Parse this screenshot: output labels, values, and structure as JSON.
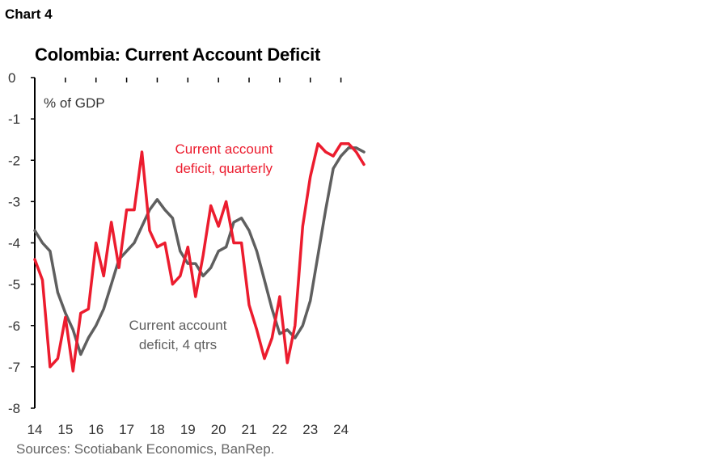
{
  "header": {
    "chart_number": "Chart 4",
    "title": "Colombia: Current Account Deficit"
  },
  "source": "Sources: Scotiabank Economics, BanRep.",
  "chart_data": {
    "type": "line",
    "title": "Colombia: Current Account Deficit",
    "ylabel": "% of GDP",
    "xlabel": "",
    "ylim": [
      -8,
      0
    ],
    "yticks": [
      0,
      -1,
      -2,
      -3,
      -4,
      -5,
      -6,
      -7,
      -8
    ],
    "xlim": [
      2014,
      2024.75
    ],
    "xticks": [
      "14",
      "15",
      "16",
      "17",
      "18",
      "19",
      "20",
      "21",
      "22",
      "23",
      "24"
    ],
    "grid": false,
    "series": [
      {
        "name": "Current account deficit, quarterly",
        "color": "#ec1c2e",
        "x": [
          2014.0,
          2014.25,
          2014.5,
          2014.75,
          2015.0,
          2015.25,
          2015.5,
          2015.75,
          2016.0,
          2016.25,
          2016.5,
          2016.75,
          2017.0,
          2017.25,
          2017.5,
          2017.75,
          2018.0,
          2018.25,
          2018.5,
          2018.75,
          2019.0,
          2019.25,
          2019.5,
          2019.75,
          2020.0,
          2020.25,
          2020.5,
          2020.75,
          2021.0,
          2021.25,
          2021.5,
          2021.75,
          2022.0,
          2022.25,
          2022.5,
          2022.75,
          2023.0,
          2023.25,
          2023.5,
          2023.75,
          2024.0,
          2024.25,
          2024.5,
          2024.75
        ],
        "values": [
          -4.4,
          -4.9,
          -7.0,
          -6.8,
          -5.8,
          -7.1,
          -5.7,
          -5.6,
          -4.0,
          -4.8,
          -3.5,
          -4.6,
          -3.2,
          -3.2,
          -1.8,
          -3.7,
          -4.1,
          -4.0,
          -5.0,
          -4.8,
          -4.1,
          -5.3,
          -4.3,
          -3.1,
          -3.6,
          -3.0,
          -4.0,
          -4.0,
          -5.5,
          -6.1,
          -6.8,
          -6.3,
          -5.3,
          -6.9,
          -6.0,
          -3.6,
          -2.4,
          -1.6,
          -1.8,
          -1.9,
          -1.6,
          -1.6,
          -1.8,
          -2.1
        ]
      },
      {
        "name": "Current account deficit, 4 qtrs",
        "color": "#5f5f5f",
        "x": [
          2014.0,
          2014.25,
          2014.5,
          2014.75,
          2015.0,
          2015.25,
          2015.5,
          2015.75,
          2016.0,
          2016.25,
          2016.5,
          2016.75,
          2017.0,
          2017.25,
          2017.5,
          2017.75,
          2018.0,
          2018.25,
          2018.5,
          2018.75,
          2019.0,
          2019.25,
          2019.5,
          2019.75,
          2020.0,
          2020.25,
          2020.5,
          2020.75,
          2021.0,
          2021.25,
          2021.5,
          2021.75,
          2022.0,
          2022.25,
          2022.5,
          2022.75,
          2023.0,
          2023.25,
          2023.5,
          2023.75,
          2024.0,
          2024.25,
          2024.5,
          2024.75
        ],
        "values": [
          -3.7,
          -4.0,
          -4.2,
          -5.2,
          -5.7,
          -6.1,
          -6.7,
          -6.3,
          -6.0,
          -5.6,
          -5.0,
          -4.4,
          -4.2,
          -4.0,
          -3.6,
          -3.2,
          -2.95,
          -3.2,
          -3.4,
          -4.2,
          -4.5,
          -4.5,
          -4.8,
          -4.6,
          -4.2,
          -4.1,
          -3.5,
          -3.4,
          -3.7,
          -4.2,
          -4.9,
          -5.6,
          -6.2,
          -6.1,
          -6.3,
          -6.0,
          -5.4,
          -4.3,
          -3.2,
          -2.2,
          -1.9,
          -1.7,
          -1.7,
          -1.8
        ]
      }
    ],
    "annotations": [
      {
        "series": 0,
        "lines": [
          "Current account",
          "deficit, quarterly"
        ]
      },
      {
        "series": 1,
        "lines": [
          "Current account",
          "deficit, 4 qtrs"
        ]
      }
    ]
  }
}
